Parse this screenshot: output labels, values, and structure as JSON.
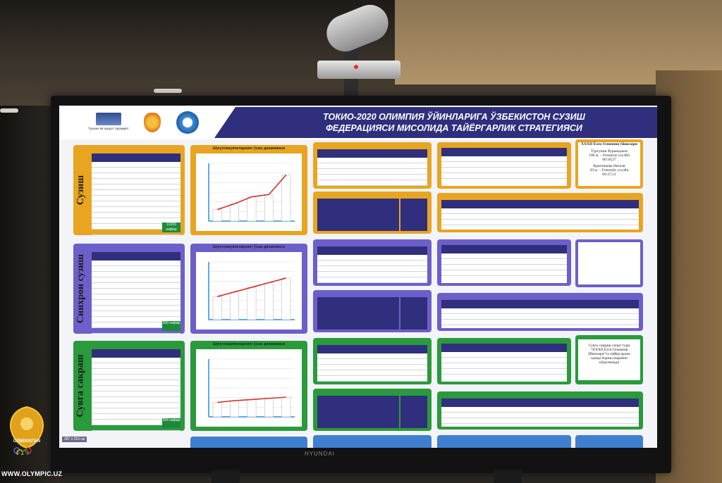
{
  "screen": {
    "title_line1": "ТОКИО-2020 ОЛИМПИЯ ЎЙИНЛАРИГА ЎЗБЕКИСТОН СУЗИШ",
    "title_line2": "ФЕДЕРАЦИЯСИ МИСОЛИДА ТАЙЁРГАРЛИК СТРАТЕГИЯСИ",
    "logo_caption": "Тушкин ва жадал тараққиёт",
    "rows": [
      {
        "label": "Сузиш",
        "color": "#e8a521",
        "badge": "10100 нафар",
        "chart_title": "Шуғулланувчиларнинг ўсиш динамикаси",
        "values": [
          20,
          30,
          42,
          46,
          80
        ]
      },
      {
        "label": "Синхрон сузиш",
        "color": "#6d5fc9",
        "badge": "350 нафар",
        "chart_title": "Шуғулланувчиларнинг ўсиш динамикаси",
        "values": [
          40,
          48,
          56,
          64,
          72
        ]
      },
      {
        "label": "Сувга сакраш",
        "color": "#2a9a3c",
        "badge": "264 нафар",
        "chart_title": "Шуғулланувчиларнинг ўсиш динамикаси",
        "values": [
          25,
          28,
          30,
          32,
          34
        ]
      }
    ],
    "info_swim": [
      "ХХХII Ёзги Олимпия ўйинлари",
      "Турсунов Хуршиджон",
      "100 м. – Freestyle усулби",
      "00:58,27",
      "Кригенкова Наталя",
      "50 м. – Freestyle усулби",
      "00:27,51"
    ],
    "info_dive": [
      "Сувга сакраш спорт тури",
      "“ХХХII Ёзги Олимпия",
      "ўйинлари”га тайёргарлик",
      "ҳамда бориш жараёни",
      "кўрилмоқда"
    ],
    "scale_note": "287 x 210 см"
  },
  "watermark": {
    "country": "UZBEKISTAN",
    "url": "WWW.OLYMPIC.UZ"
  },
  "monitor_brand": "HYUNDAI"
}
